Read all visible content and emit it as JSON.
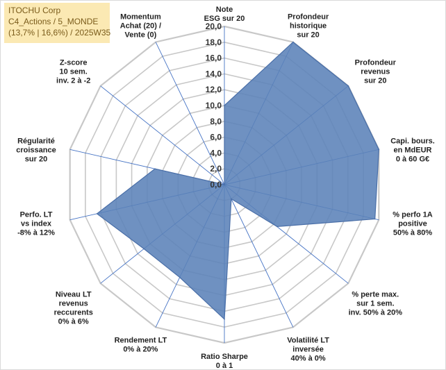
{
  "info_box": {
    "lines": [
      "ITOCHU Corp",
      "C4_Actions / 5_MONDE",
      "(13,7% | 16,6%) / 2025W35"
    ]
  },
  "colors": {
    "fill": "#5b82b8",
    "stroke": "#4a6fa8",
    "axis": "#4472c4",
    "grid": "#c8c8c8",
    "info_bg": "#fbe9b3",
    "info_text": "#7a5b1a"
  },
  "chart_data": {
    "type": "radar",
    "title": "",
    "rlim": [
      0,
      20
    ],
    "tick_labels": [
      "0,0",
      "2,0",
      "4,0",
      "6,0",
      "8,0",
      "10,0",
      "12,0",
      "14,0",
      "16,0",
      "18,0",
      "20,0"
    ],
    "grid": true,
    "legend": "none",
    "categories": [
      [
        "Note",
        "ESG sur 20"
      ],
      [
        "Profondeur",
        "historique",
        "sur 20"
      ],
      [
        "Profondeur",
        "revenus",
        "sur 20"
      ],
      [
        "Capi. bours.",
        "en MdEUR",
        "0 à 60 G€"
      ],
      [
        "% perfo 1A",
        "positive",
        "50% à 80%"
      ],
      [
        "% perte max.",
        "sur 1 sem.",
        "inv. 50% à 20%"
      ],
      [
        "Volatilité LT",
        "inversée",
        "40% à 0%"
      ],
      [
        "Ratio Sharpe",
        "0 à 1"
      ],
      [
        "Rendement LT",
        "0% à 20%"
      ],
      [
        "Niveau LT",
        "revenus",
        "reccurents",
        "0% à 6%"
      ],
      [
        "Perfo. LT",
        "vs index",
        "-8% à 12%"
      ],
      [
        "Régularité",
        "croissance",
        "sur 20"
      ],
      [
        "Z-score",
        "10 sem.",
        "inv. 2 à -2"
      ],
      [
        "Momentum",
        "Achat (20) /",
        "Vente (0)"
      ]
    ],
    "values": [
      10,
      20,
      20,
      20,
      19.5,
      8.5,
      2,
      17,
      13,
      13,
      16.5,
      9,
      0,
      0
    ]
  }
}
